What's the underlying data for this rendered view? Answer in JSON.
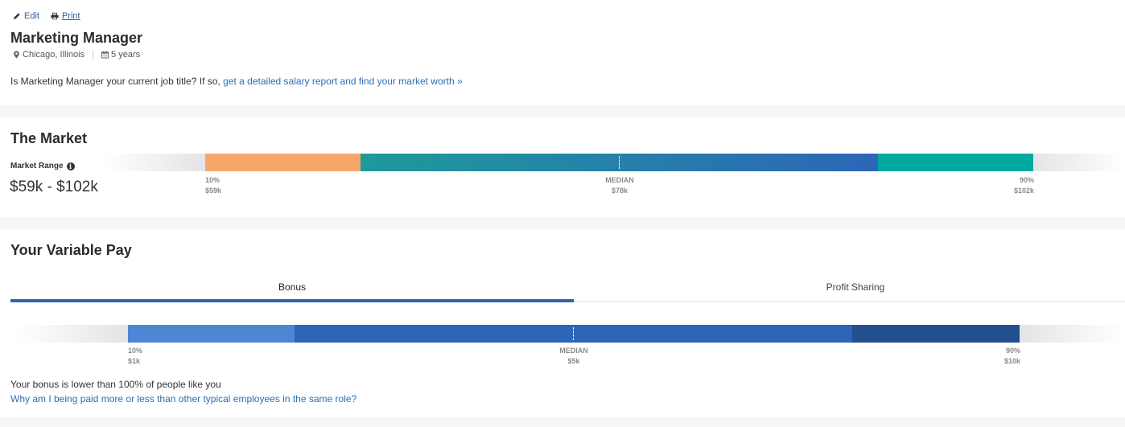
{
  "actions": {
    "edit_label": "Edit",
    "print_label": "Print"
  },
  "job": {
    "title": "Marketing Manager",
    "location": "Chicago, Illinois",
    "experience": "5 years",
    "question_prefix": "Is Marketing Manager your current job title? If so,",
    "question_link": "get a detailed salary report and find your market worth »"
  },
  "market": {
    "heading": "The Market",
    "range_label": "Market Range",
    "range_value": "$59k - $102k",
    "ticks": {
      "low": {
        "pct": "10%",
        "value": "$59k"
      },
      "median": {
        "pct": "MEDIAN",
        "value": "$78k"
      },
      "high": {
        "pct": "90%",
        "value": "$102k"
      }
    },
    "colors": {
      "low": "#f7a66b",
      "mid_start": "#1e9a9b",
      "mid_end": "#2d66b8",
      "high": "#00aaa3"
    }
  },
  "variable_pay": {
    "heading": "Your Variable Pay",
    "tabs": [
      {
        "label": "Bonus",
        "active": true
      },
      {
        "label": "Profit Sharing",
        "active": false
      }
    ],
    "ticks": {
      "low": {
        "pct": "10%",
        "value": "$1k"
      },
      "median": {
        "pct": "MEDIAN",
        "value": "$5k"
      },
      "high": {
        "pct": "90%",
        "value": "$10k"
      }
    },
    "colors": {
      "low": "#4f86d4",
      "mid": "#2d65b8",
      "high": "#234f8f"
    },
    "bonus_note": "Your bonus is lower than 100% of people like you",
    "why_link": "Why am I being paid more or less than other typical employees in the same role?"
  }
}
